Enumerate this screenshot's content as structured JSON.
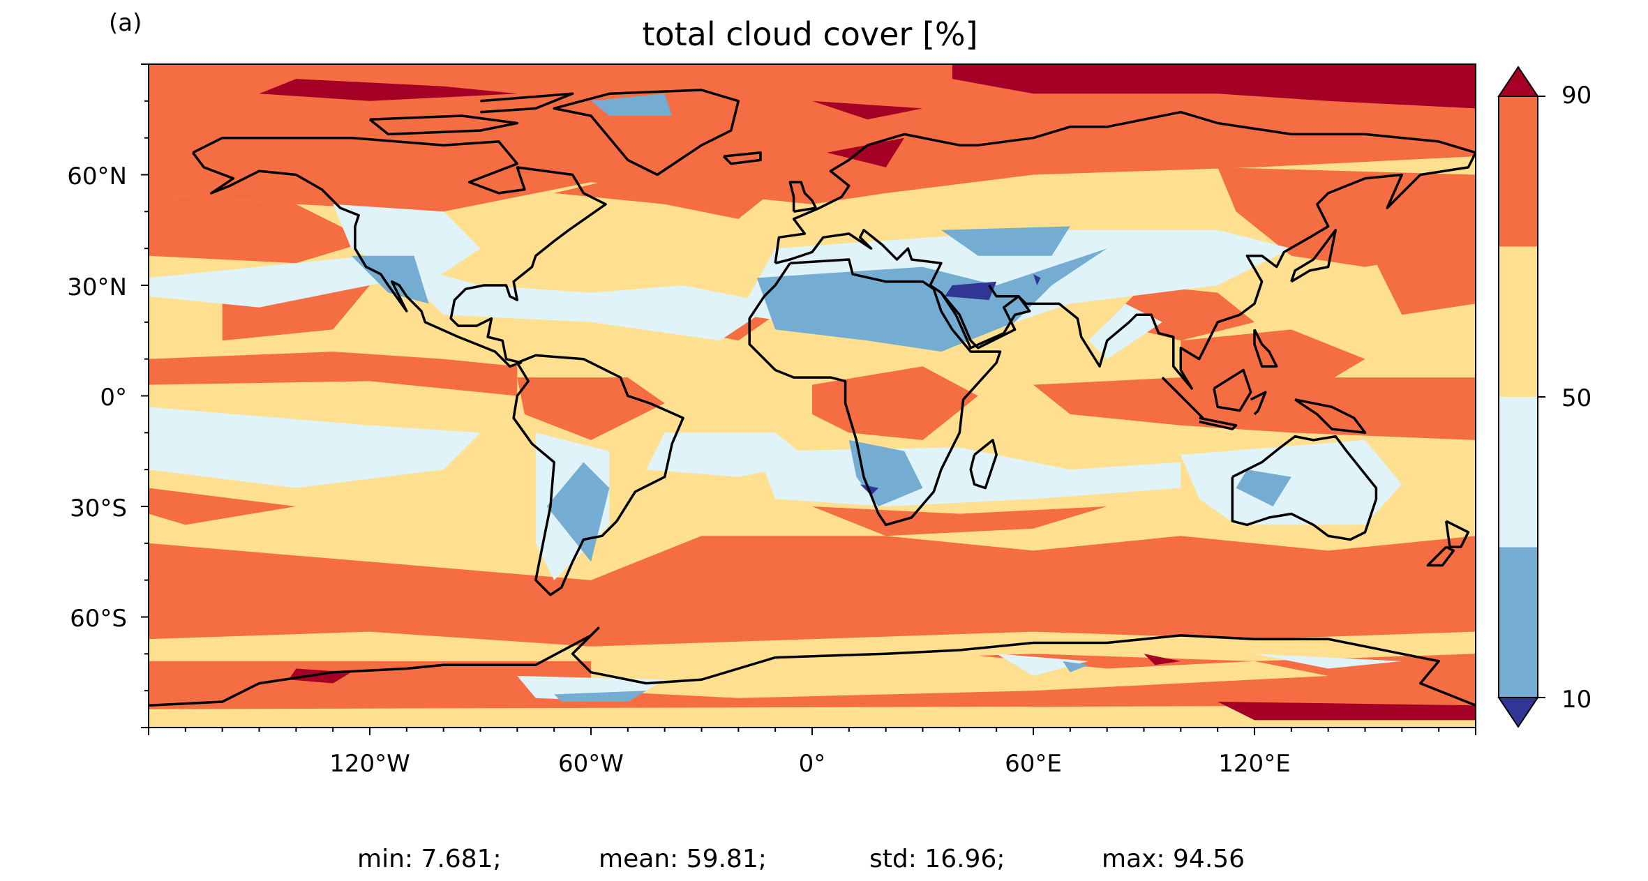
{
  "panel_label": "(a)",
  "title": "total cloud cover [%]",
  "axes": {
    "lon_ticks": [
      "120°W",
      "60°W",
      "0°",
      "60°E",
      "120°E"
    ],
    "lat_ticks": [
      "60°N",
      "30°N",
      "0°",
      "30°S",
      "60°S"
    ]
  },
  "colorbar": {
    "tick_labels": [
      "90",
      "50",
      "10"
    ],
    "levels": [
      10,
      30,
      50,
      70,
      90
    ],
    "colors": {
      "under": "#313695",
      "c10_30": "#74add1",
      "c30_50": "#e0f3f8",
      "c50_70": "#fee090",
      "c70_90": "#f46d43",
      "over": "#a50026"
    },
    "extend": "both"
  },
  "stats": {
    "min": "min: 7.681;",
    "mean": "mean: 59.81;",
    "std": "std: 16.96;",
    "max": "max: 94.56"
  },
  "map_data": {
    "projection": "PlateCarree",
    "lon_range": [
      -180,
      180
    ],
    "lat_range": [
      -90,
      90
    ],
    "variable": "total cloud cover",
    "units": "%",
    "coastlines": true
  }
}
